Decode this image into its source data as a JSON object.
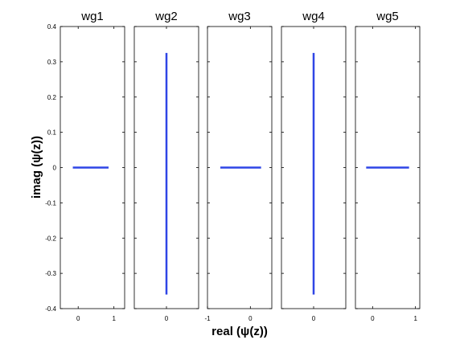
{
  "chart_data": {
    "type": "line",
    "xlabel": "real (ψ(z))",
    "ylabel": "imag (ψ(z))",
    "ylim": [
      -0.4,
      0.4
    ],
    "y_ticks": [
      {
        "value": 0.4,
        "label": "0.4"
      },
      {
        "value": 0.3,
        "label": "0.3"
      },
      {
        "value": 0.2,
        "label": "0.2"
      },
      {
        "value": 0.1,
        "label": "0.1"
      },
      {
        "value": 0,
        "label": "0"
      },
      {
        "value": -0.1,
        "label": "-0.1"
      },
      {
        "value": -0.2,
        "label": "-0.2"
      },
      {
        "value": -0.3,
        "label": "-0.3"
      },
      {
        "value": -0.4,
        "label": "-0.4"
      }
    ],
    "grid": false,
    "line_color": "#2f45e6",
    "panels": [
      {
        "title": "wg1",
        "xlim": [
          -0.5,
          1.3
        ],
        "x_ticks": [
          {
            "value": 0,
            "label": "0"
          },
          {
            "value": 1,
            "label": "1"
          }
        ],
        "x": [
          -0.15,
          0.85
        ],
        "y": [
          0,
          0
        ]
      },
      {
        "title": "wg2",
        "xlim": [
          -0.5,
          0.5
        ],
        "x_ticks": [
          {
            "value": 0,
            "label": "0"
          }
        ],
        "x": [
          0,
          0
        ],
        "y": [
          -0.36,
          0.325
        ]
      },
      {
        "title": "wg3",
        "xlim": [
          -1.0,
          0.5
        ],
        "x_ticks": [
          {
            "value": -1,
            "label": "-1"
          },
          {
            "value": 0,
            "label": "0"
          }
        ],
        "x": [
          -0.7,
          0.25
        ],
        "y": [
          0,
          0
        ]
      },
      {
        "title": "wg4",
        "xlim": [
          -0.5,
          0.5
        ],
        "x_ticks": [
          {
            "value": 0,
            "label": "0"
          }
        ],
        "x": [
          0,
          0
        ],
        "y": [
          -0.36,
          0.325
        ]
      },
      {
        "title": "wg5",
        "xlim": [
          -0.4,
          1.1
        ],
        "x_ticks": [
          {
            "value": 0,
            "label": "0"
          },
          {
            "value": 1,
            "label": "1"
          }
        ],
        "x": [
          -0.15,
          0.85
        ],
        "y": [
          0,
          0
        ]
      }
    ]
  }
}
